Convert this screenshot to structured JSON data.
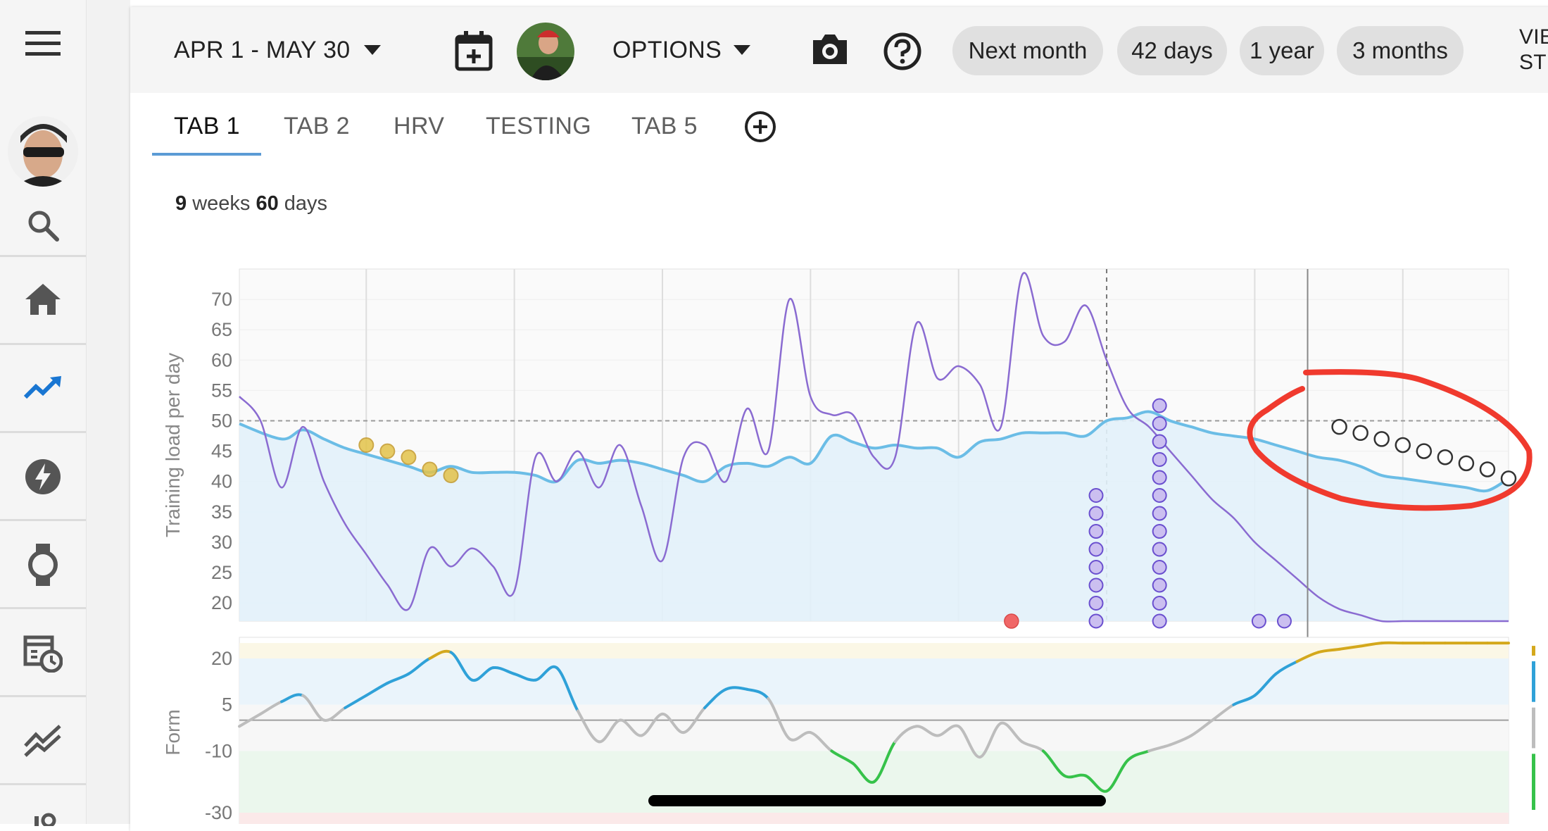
{
  "toolbar": {
    "date_range": "APR 1 - MAY 30",
    "options_label": "OPTIONS",
    "chips": [
      "Next month",
      "42 days",
      "1 year",
      "3 months"
    ],
    "view_label_line1": "VIE",
    "view_label_line2": "ST"
  },
  "tabs": {
    "items": [
      "TAB 1",
      "TAB 2",
      "HRV",
      "TESTING",
      "TAB 5"
    ],
    "active": "TAB 1"
  },
  "summary": {
    "weeks": "9",
    "weeks_label": "weeks",
    "days": "60",
    "days_label": "days"
  },
  "icons": {
    "menu": "menu-icon",
    "search": "search-icon",
    "home": "home-icon",
    "trend": "trending-up-icon",
    "power": "bolt-icon",
    "watch": "watch-icon",
    "calendar_clock": "calendar-clock-icon",
    "compare": "compare-lines-icon",
    "add_calendar": "calendar-add-icon",
    "camera": "camera-icon",
    "help": "help-icon",
    "add_tab": "add-circle-icon"
  },
  "colors": {
    "fitness_line": "#6bbde6",
    "load_line": "#8a6bd1",
    "highlight_past": "#e3c34a",
    "form_blue": "#2fa1d8",
    "form_green": "#36c24a",
    "form_gold": "#d4a81c",
    "form_grey": "#bdbdbd",
    "annotation": "#f03a2e"
  },
  "chart_data": [
    {
      "type": "line",
      "ylabel": "Training load per day",
      "ylim": [
        17,
        75
      ],
      "yticks": [
        70,
        65,
        60,
        55,
        50,
        45,
        40,
        35,
        30,
        25,
        20
      ],
      "reference_line": 50,
      "x_range_days": [
        0,
        60
      ],
      "series": [
        {
          "key": "fitness",
          "x": [
            0,
            2,
            3,
            4,
            5,
            6,
            7,
            8,
            9,
            10,
            11,
            12,
            13,
            14,
            15,
            16,
            17,
            18,
            19,
            20,
            21,
            22,
            23,
            24,
            25,
            26,
            27,
            28,
            29,
            30,
            31,
            32,
            33,
            34,
            35,
            36,
            37,
            38,
            39,
            40,
            41,
            42,
            43,
            44,
            45,
            46,
            47,
            48,
            49,
            50,
            51,
            52,
            53,
            54,
            55,
            56,
            57,
            58,
            59,
            60
          ],
          "values": [
            49.5,
            47.0,
            48.5,
            47.0,
            45.5,
            44.5,
            43.5,
            42.5,
            41.5,
            42.5,
            41.5,
            41.5,
            41.5,
            41.0,
            40.0,
            43.5,
            43.0,
            43.5,
            43.0,
            42.0,
            41.0,
            40.0,
            42.5,
            43.0,
            42.5,
            44.0,
            43.0,
            47.5,
            46.5,
            45.5,
            46.0,
            45.5,
            45.5,
            44.0,
            46.5,
            47.0,
            48.0,
            48.0,
            48.0,
            47.5,
            50.0,
            50.5,
            51.5,
            50.0,
            49.0,
            48.0,
            47.5,
            47.0,
            46.0,
            45.0,
            44.0,
            43.5,
            42.5,
            41.0,
            40.5,
            40.0,
            39.5,
            39.0,
            38.5,
            40.5
          ]
        },
        {
          "key": "load",
          "x": [
            0,
            1,
            2,
            3,
            4,
            5,
            6,
            7,
            8,
            9,
            10,
            11,
            12,
            13,
            14,
            15,
            16,
            17,
            18,
            19,
            20,
            21,
            22,
            23,
            24,
            25,
            26,
            27,
            28,
            29,
            30,
            31,
            32,
            33,
            34,
            35,
            36,
            37,
            38,
            39,
            40,
            41,
            42,
            43,
            44,
            45,
            46,
            47,
            48,
            49,
            50,
            51,
            52,
            53,
            54,
            55,
            56,
            57,
            58,
            59,
            60
          ],
          "values": [
            54,
            50,
            39,
            49,
            40,
            33,
            28,
            23,
            19,
            29,
            26,
            29,
            26,
            22,
            44,
            40,
            45,
            39,
            46,
            36,
            27,
            44,
            46,
            40,
            52,
            45,
            70,
            54,
            51,
            51,
            44,
            44,
            66,
            57,
            59,
            56,
            49,
            74,
            64,
            63,
            69,
            60,
            52,
            49,
            45,
            41,
            37,
            34,
            30,
            27,
            24,
            21,
            19,
            18,
            17,
            17,
            17,
            17,
            17,
            17,
            17
          ]
        }
      ],
      "highlighted_past_x": [
        6,
        7,
        8,
        9,
        10
      ],
      "highlighted_past_values": [
        46,
        45,
        44,
        42,
        41
      ],
      "planned_x": [
        52,
        53,
        54,
        55,
        56,
        57,
        58,
        59,
        60
      ],
      "planned_values": [
        49,
        48,
        47,
        46,
        45,
        44,
        43,
        42,
        40.5
      ],
      "activities": [
        {
          "x": 40.5,
          "stack_top": 35
        },
        {
          "x": 43.5,
          "stack_top": 52.5
        },
        {
          "x": 48.2,
          "stack_top": 17
        },
        {
          "x": 49.4,
          "stack_top": 17
        }
      ],
      "event_markers": [
        {
          "x": 36.5,
          "value": 17,
          "color": "#f06767"
        }
      ],
      "vertical_markers": {
        "today_x": 50.5,
        "dashed_x": 41
      }
    },
    {
      "type": "line",
      "ylabel": "Form",
      "ylim": [
        -30,
        25
      ],
      "yticks": [
        20,
        5,
        -10,
        -30
      ],
      "zone_reference": 0,
      "series": [
        {
          "key": "form",
          "x": [
            0,
            1,
            2,
            3,
            4,
            5,
            6,
            7,
            8,
            9,
            10,
            11,
            12,
            13,
            14,
            15,
            16,
            17,
            18,
            19,
            20,
            21,
            22,
            23,
            24,
            25,
            26,
            27,
            28,
            29,
            30,
            31,
            32,
            33,
            34,
            35,
            36,
            37,
            38,
            39,
            40,
            41,
            42,
            43,
            44,
            45,
            46,
            47,
            48,
            49,
            50,
            51,
            52,
            53,
            54,
            55,
            56,
            57,
            58,
            59,
            60
          ],
          "values": [
            -2,
            2,
            6,
            8,
            0,
            4,
            8,
            12,
            15,
            20,
            22,
            13,
            17,
            15,
            13,
            17,
            3,
            -7,
            0,
            -5,
            2,
            -4,
            4,
            10,
            10,
            7,
            -6,
            -4,
            -10,
            -14,
            -20,
            -7,
            -2,
            -5,
            -2,
            -12,
            -1,
            -7,
            -10,
            -18,
            -18,
            -23,
            -13,
            -10,
            -8,
            -5,
            0,
            5,
            8,
            15,
            19,
            22,
            23,
            24,
            25,
            25,
            25,
            25,
            25,
            25,
            25
          ]
        }
      ]
    }
  ]
}
